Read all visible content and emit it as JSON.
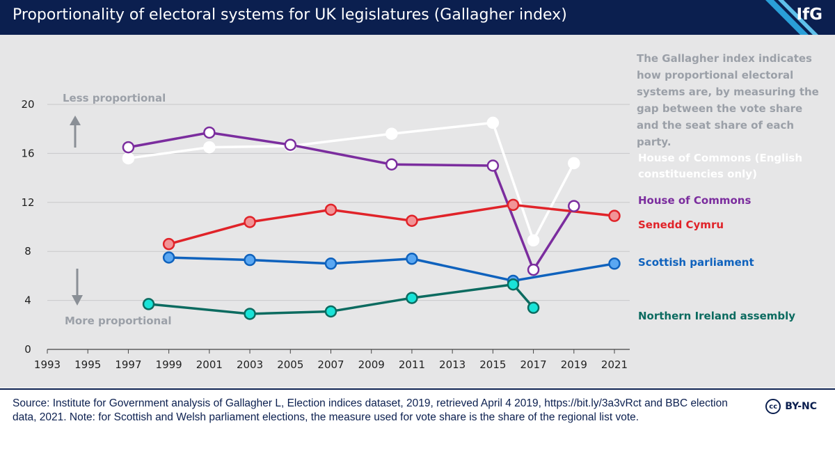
{
  "header": {
    "title": "Proportionality of electoral systems for UK legislatures (Gallagher index)",
    "logo": "IfG"
  },
  "annotations": {
    "less": "Less proportional",
    "more": "More proportional",
    "note": "The Gallagher index indicates  how proportional electoral systems are, by measuring the gap between the vote share and the seat share of each party."
  },
  "footer": {
    "source": "Source: Institute for Government analysis of Gallagher L, Election indices dataset, 2019, retrieved April 4 2019, https://bit.ly/3a3vRct and BBC election data, 2021. Note: for Scottish and Welsh parliament elections, the measure used for vote share is the share of the regional list vote.",
    "license": "BY-NC",
    "cc_symbol": "cc"
  },
  "chart_data": {
    "type": "line",
    "title": "Proportionality of electoral systems for UK legislatures (Gallagher index)",
    "xlabel": "",
    "ylabel": "",
    "xlim": [
      1993,
      2021
    ],
    "ylim": [
      0,
      20
    ],
    "x_ticks": [
      1993,
      1995,
      1997,
      1999,
      2001,
      2003,
      2005,
      2007,
      2009,
      2011,
      2013,
      2015,
      2017,
      2019,
      2021
    ],
    "y_ticks": [
      0,
      4,
      8,
      12,
      16,
      20
    ],
    "grid": true,
    "series": [
      {
        "name": "House of Commons (English constituencies only)",
        "line_color": "#ffffff",
        "marker_fill": "#ffffff",
        "marker_stroke": "#ffffff",
        "label_color": "#ffffff",
        "points": [
          [
            1997,
            15.6
          ],
          [
            2001,
            16.5
          ],
          [
            2005,
            16.6
          ],
          [
            2010,
            17.6
          ],
          [
            2015,
            18.5
          ],
          [
            2017,
            8.9
          ],
          [
            2019,
            15.2
          ]
        ]
      },
      {
        "name": "House of Commons",
        "line_color": "#7b2d9e",
        "marker_fill": "#ffffff",
        "marker_stroke": "#7b2d9e",
        "label_color": "#7b2d9e",
        "points": [
          [
            1997,
            16.5
          ],
          [
            2001,
            17.7
          ],
          [
            2005,
            16.7
          ],
          [
            2010,
            15.1
          ],
          [
            2015,
            15.0
          ],
          [
            2017,
            6.5
          ],
          [
            2019,
            11.7
          ]
        ]
      },
      {
        "name": "Senedd Cymru",
        "line_color": "#e02329",
        "marker_fill": "#f19497",
        "marker_stroke": "#e02329",
        "label_color": "#e02329",
        "points": [
          [
            1999,
            8.6
          ],
          [
            2003,
            10.4
          ],
          [
            2007,
            11.4
          ],
          [
            2011,
            10.5
          ],
          [
            2016,
            11.8
          ],
          [
            2021,
            10.9
          ]
        ]
      },
      {
        "name": "Scottish parliament",
        "line_color": "#0f62bd",
        "marker_fill": "#5aa7f2",
        "marker_stroke": "#0f62bd",
        "label_color": "#0f62bd",
        "points": [
          [
            1999,
            7.5
          ],
          [
            2003,
            7.3
          ],
          [
            2007,
            7.0
          ],
          [
            2011,
            7.4
          ],
          [
            2016,
            5.6
          ],
          [
            2021,
            7.0
          ]
        ]
      },
      {
        "name": "Northern Ireland assembly",
        "line_color": "#0c6b60",
        "marker_fill": "#19e3d8",
        "marker_stroke": "#0c6b60",
        "label_color": "#0c6b60",
        "points": [
          [
            1998,
            3.7
          ],
          [
            2003,
            2.9
          ],
          [
            2007,
            3.1
          ],
          [
            2011,
            4.2
          ],
          [
            2016,
            5.3
          ],
          [
            2017,
            3.4
          ]
        ]
      }
    ]
  }
}
